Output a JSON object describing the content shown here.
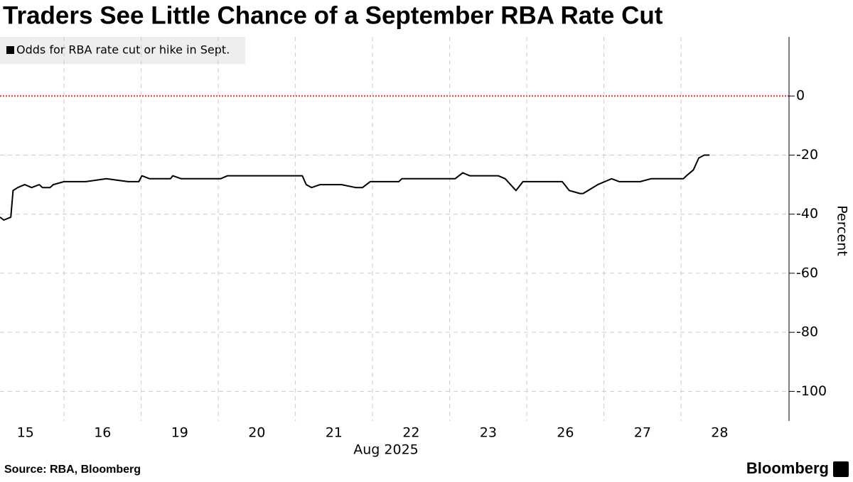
{
  "chart_data": {
    "type": "line",
    "title": "Traders See Little Chance of a September RBA Rate Cut",
    "x_sublabel": "Aug 2025",
    "ylabel": "Percent",
    "source": "Source: RBA, Bloomberg",
    "brand": "Bloomberg",
    "grid": true,
    "zero_line": true,
    "legend_position": "top-left",
    "xlim": [
      0.17,
      10.4
    ],
    "xticks": [
      {
        "value": 0.5,
        "label": "15"
      },
      {
        "value": 1.5,
        "label": "16"
      },
      {
        "value": 2.5,
        "label": "19"
      },
      {
        "value": 3.5,
        "label": "20"
      },
      {
        "value": 4.5,
        "label": "21"
      },
      {
        "value": 5.5,
        "label": "22"
      },
      {
        "value": 6.5,
        "label": "23"
      },
      {
        "value": 7.5,
        "label": "26"
      },
      {
        "value": 8.5,
        "label": "27"
      },
      {
        "value": 9.5,
        "label": "28"
      }
    ],
    "ylim": [
      -110,
      20
    ],
    "yticks": [
      0,
      -20,
      -40,
      -60,
      -80,
      -100
    ],
    "series": [
      {
        "name": "Odds for RBA rate cut or hike in Sept.",
        "color": "#000000",
        "x": [
          0.17,
          0.22,
          0.31,
          0.34,
          0.4,
          0.49,
          0.58,
          0.68,
          0.72,
          0.82,
          0.86,
          1.0,
          1.28,
          1.55,
          1.83,
          1.97,
          2.01,
          2.11,
          2.38,
          2.41,
          2.52,
          3.03,
          3.12,
          3.17,
          4.09,
          4.14,
          4.21,
          4.32,
          4.6,
          4.78,
          4.87,
          4.97,
          5.34,
          5.38,
          6.07,
          6.17,
          6.26,
          6.63,
          6.72,
          6.86,
          6.95,
          7.46,
          7.55,
          7.69,
          7.73,
          7.92,
          8.1,
          8.2,
          8.47,
          8.61,
          9.03,
          9.07,
          9.16,
          9.23,
          9.3,
          9.37
        ],
        "values": [
          -41,
          -42,
          -41,
          -32,
          -31,
          -30,
          -31,
          -30,
          -31,
          -31,
          -30,
          -29,
          -29,
          -28,
          -29,
          -29,
          -27,
          -28,
          -28,
          -27,
          -28,
          -28,
          -27,
          -27,
          -27,
          -30,
          -31,
          -30,
          -30,
          -31,
          -31,
          -29,
          -29,
          -28,
          -28,
          -26,
          -27,
          -27,
          -28,
          -32,
          -29,
          -29,
          -32,
          -33,
          -33,
          -30,
          -28,
          -29,
          -29,
          -28,
          -28,
          -27,
          -25,
          -21,
          -20,
          -20
        ]
      }
    ]
  }
}
